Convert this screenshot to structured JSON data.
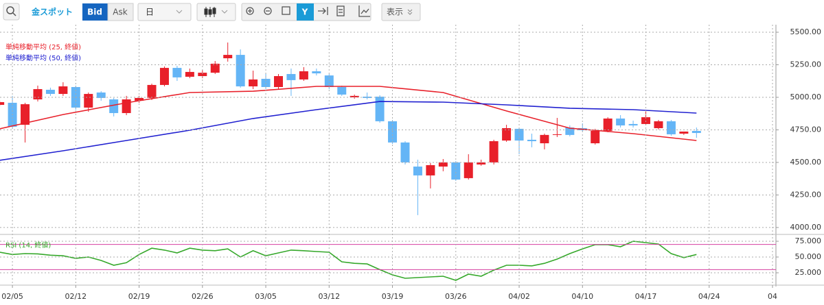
{
  "toolbar": {
    "symbol": "金スポット",
    "bid": "Bid",
    "ask": "Ask",
    "period": "日",
    "display": "表示"
  },
  "chart_data": [
    {
      "type": "candlestick",
      "x": [
        0,
        1,
        2,
        3,
        4,
        5,
        6,
        7,
        8,
        9,
        10,
        11,
        12,
        13,
        14,
        15,
        16,
        17,
        18,
        19,
        20,
        21,
        22,
        23,
        24,
        25,
        26,
        27,
        28,
        29,
        30,
        31,
        32,
        33,
        34,
        35,
        36,
        37,
        38,
        39,
        40,
        41,
        42,
        43,
        44,
        45,
        46,
        47,
        48,
        49,
        50,
        51,
        52,
        53,
        54,
        55
      ],
      "open": [
        4942,
        4958,
        4789,
        4984,
        5058,
        5026,
        5079,
        4921,
        5037,
        4984,
        4879,
        4974,
        4995,
        5095,
        5226,
        5158,
        5163,
        5189,
        5300,
        5326,
        5084,
        5142,
        5079,
        5179,
        5137,
        5200,
        5168,
        5079,
        5000,
        5005,
        5005,
        4816,
        4653,
        4468,
        4400,
        4468,
        4500,
        4379,
        4484,
        4500,
        4668,
        4758,
        4674,
        4647,
        4711,
        4768,
        4763,
        4647,
        4742,
        4837,
        4795,
        4795,
        4763,
        4816,
        4721,
        4742
      ],
      "high": [
        4974,
        5011,
        4958,
        5090,
        5074,
        5116,
        5090,
        5037,
        5047,
        4995,
        5011,
        5011,
        5105,
        5237,
        5242,
        5221,
        5211,
        5279,
        5421,
        5368,
        5205,
        5179,
        5179,
        5221,
        5232,
        5221,
        5179,
        5090,
        5021,
        5037,
        5016,
        4826,
        4663,
        4521,
        4495,
        4526,
        4511,
        4563,
        4521,
        4674,
        4789,
        4768,
        4721,
        4721,
        4842,
        4784,
        4800,
        4758,
        4847,
        4863,
        4821,
        4895,
        4826,
        4826,
        4737,
        4768
      ],
      "low": [
        4932,
        4758,
        4653,
        4968,
        5011,
        5011,
        4905,
        4889,
        4974,
        4853,
        4863,
        4958,
        4979,
        5084,
        5126,
        5147,
        5147,
        5179,
        5274,
        5074,
        5063,
        5063,
        5063,
        5011,
        5126,
        5168,
        5063,
        5011,
        4989,
        4984,
        4805,
        4642,
        4484,
        4095,
        4300,
        4432,
        4358,
        4368,
        4474,
        4484,
        4658,
        4563,
        4616,
        4600,
        4695,
        4700,
        4737,
        4637,
        4732,
        4768,
        4768,
        4784,
        4753,
        4705,
        4711,
        4689
      ],
      "close": [
        4963,
        4774,
        4947,
        5063,
        5026,
        5084,
        4921,
        5026,
        4995,
        4879,
        4984,
        4995,
        5095,
        5226,
        5153,
        5195,
        5189,
        5258,
        5326,
        5084,
        5137,
        5079,
        5163,
        5132,
        5200,
        5184,
        5079,
        5021,
        5011,
        4995,
        4816,
        4653,
        4500,
        4400,
        4479,
        4500,
        4368,
        4500,
        4500,
        4663,
        4763,
        4668,
        4663,
        4711,
        4716,
        4711,
        4747,
        4742,
        4837,
        4784,
        4784,
        4847,
        4816,
        4716,
        4737,
        4726
      ],
      "up_color": "#e8202a",
      "down_color": "#64b5f6",
      "series": [
        {
          "name": "単純移動平均 (25, 終値)",
          "color": "#e8202a",
          "x": [
            0,
            5,
            10,
            15,
            20,
            25,
            30,
            35,
            40,
            45,
            50,
            55
          ],
          "values": [
            4758,
            4868,
            4958,
            5037,
            5047,
            5084,
            5084,
            5037,
            4895,
            4763,
            4721,
            4668
          ]
        },
        {
          "name": "単純移動平均 (50, 終値)",
          "color": "#2020d0",
          "x": [
            0,
            5,
            10,
            15,
            20,
            25,
            30,
            35,
            40,
            45,
            50,
            55
          ],
          "values": [
            4516,
            4589,
            4668,
            4747,
            4837,
            4905,
            4968,
            4963,
            4942,
            4916,
            4905,
            4879
          ]
        }
      ],
      "xlim": [
        0.02,
        61.27
      ],
      "ylim": [
        3968,
        5558
      ],
      "yticks": [
        {
          "value": 4000,
          "label": "4000.00"
        },
        {
          "value": 4250,
          "label": "4250.00"
        },
        {
          "value": 4500,
          "label": "4500.00"
        },
        {
          "value": 4750,
          "label": "4750.00"
        },
        {
          "value": 5000,
          "label": "5000.00"
        },
        {
          "value": 5250,
          "label": "5250.00"
        },
        {
          "value": 5500,
          "label": "5500.00"
        }
      ],
      "grid": true
    },
    {
      "type": "line",
      "x": [
        0,
        1,
        2,
        3,
        4,
        5,
        6,
        7,
        8,
        9,
        10,
        11,
        12,
        13,
        14,
        15,
        16,
        17,
        18,
        19,
        20,
        21,
        22,
        23,
        24,
        25,
        26,
        27,
        28,
        29,
        30,
        31,
        32,
        33,
        34,
        35,
        36,
        37,
        38,
        39,
        40,
        41,
        42,
        43,
        44,
        45,
        46,
        47,
        48,
        49,
        50,
        51,
        52,
        53,
        54,
        55
      ],
      "series": [
        {
          "name": "RSI (14, 終値)",
          "color": "#35a82a",
          "values": [
            57.6,
            54,
            55.4,
            55,
            53,
            52,
            48,
            50,
            44.6,
            37,
            41,
            54,
            64,
            61,
            56.5,
            64,
            61,
            60,
            63,
            50,
            60,
            52,
            56.5,
            61,
            60,
            58.7,
            57.6,
            42.4,
            40,
            39,
            30,
            21.7,
            16.3,
            17.4,
            18.5,
            19.6,
            13,
            22.8,
            19.6,
            29.3,
            37,
            37,
            36,
            40,
            46.7,
            55.4,
            63,
            69.6,
            69.6,
            66.3,
            75,
            72.8,
            70.6,
            55.4,
            49,
            54
          ]
        }
      ],
      "reference_lines": [
        70,
        30
      ],
      "reference_color": "#d63fa0",
      "xlim": [
        0.02,
        61.27
      ],
      "ylim": [
        8.7,
        84.8
      ],
      "yticks": [
        {
          "value": 25,
          "label": "25.000"
        },
        {
          "value": 50,
          "label": "50.000"
        },
        {
          "value": 75,
          "label": "75.000"
        }
      ],
      "xticks": [
        {
          "value": 1,
          "label": "02/05"
        },
        {
          "value": 6,
          "label": "02/12"
        },
        {
          "value": 11,
          "label": "02/19"
        },
        {
          "value": 16,
          "label": "02/26"
        },
        {
          "value": 21,
          "label": "03/05"
        },
        {
          "value": 26,
          "label": "03/12"
        },
        {
          "value": 31,
          "label": "03/19"
        },
        {
          "value": 36,
          "label": "03/26"
        },
        {
          "value": 41,
          "label": "04/02"
        },
        {
          "value": 46,
          "label": "04/10"
        },
        {
          "value": 51,
          "label": "04/17"
        },
        {
          "value": 56,
          "label": "04/24"
        },
        {
          "value": 61,
          "label": "04"
        }
      ],
      "grid": true
    }
  ]
}
